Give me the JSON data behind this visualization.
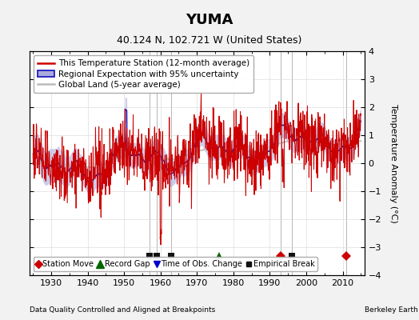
{
  "title": "YUMA",
  "subtitle": "40.124 N, 102.721 W (United States)",
  "ylabel": "Temperature Anomaly (°C)",
  "xlabel_note": "Data Quality Controlled and Aligned at Breakpoints",
  "source_note": "Berkeley Earth",
  "xlim": [
    1924,
    2016
  ],
  "ylim": [
    -4,
    4
  ],
  "yticks": [
    -4,
    -3,
    -2,
    -1,
    0,
    1,
    2,
    3,
    4
  ],
  "xticks": [
    1930,
    1940,
    1950,
    1960,
    1970,
    1980,
    1990,
    2000,
    2010
  ],
  "color_red": "#cc0000",
  "color_blue": "#1111bb",
  "color_blue_fill": "#aaaadd",
  "color_gray": "#bbbbbb",
  "color_bg": "#f2f2f2",
  "color_plot_bg": "#ffffff",
  "marker_events": {
    "station_move": {
      "years": [
        1993,
        2011
      ],
      "color": "#cc0000",
      "marker": "D"
    },
    "record_gap": {
      "years": [
        1976
      ],
      "color": "#006600",
      "marker": "^"
    },
    "time_obs_change": {
      "years": [],
      "color": "#0000cc",
      "marker": "v"
    },
    "empirical_break": {
      "years": [
        1957,
        1959,
        1963,
        1996
      ],
      "color": "#111111",
      "marker": "s"
    }
  },
  "vline_years": [
    1957,
    1959,
    1963,
    1993,
    1996,
    2011
  ],
  "event_y": -3.3,
  "legend1_fontsize": 7.5,
  "legend2_fontsize": 7.0,
  "title_fontsize": 13,
  "subtitle_fontsize": 9
}
